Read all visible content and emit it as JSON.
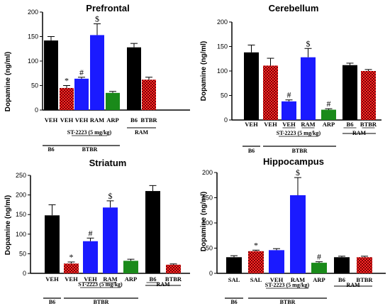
{
  "chart_data": [
    {
      "type": "bar",
      "title": "Prefrontal",
      "ylabel": "Dopamine (ng/ml)",
      "ylim": [
        0,
        200
      ],
      "yticks": [
        0,
        50,
        100,
        150,
        200
      ],
      "categories": [
        "VEH",
        "VEH",
        "VEH",
        "RAM",
        "ARP",
        "B6",
        "BTBR"
      ],
      "values": [
        142,
        45,
        64,
        153,
        35,
        128,
        62
      ],
      "errors": [
        8,
        5,
        3,
        23,
        3,
        8,
        5
      ],
      "annotations": [
        "",
        "*",
        "#",
        "$",
        "",
        "",
        ""
      ],
      "fills": [
        "black",
        "red-check",
        "blue",
        "blue",
        "green",
        "black",
        "red-check"
      ],
      "underlined_labels": [
        false,
        false,
        false,
        false,
        false,
        false,
        false
      ],
      "groups": [
        {
          "label": "ST-2223 (5 mg/kg)",
          "from": 2,
          "to": 3,
          "underline": true
        },
        {
          "label": "RAM",
          "from": 5,
          "to": 6,
          "underline": false
        },
        {
          "label": "B6",
          "from": 0,
          "to": 0,
          "underline": false
        },
        {
          "label": "BTBR",
          "from": 1,
          "to": 4,
          "underline": false
        }
      ]
    },
    {
      "type": "bar",
      "title": "Cerebellum",
      "ylabel": "Dopamine (ng/ml)",
      "ylim": [
        0,
        200
      ],
      "yticks": [
        0,
        50,
        100,
        150,
        200
      ],
      "categories": [
        "VEH",
        "VEH",
        "VEH",
        "RAM",
        "ARP",
        "B6",
        "BTBR"
      ],
      "values": [
        138,
        111,
        38,
        128,
        21,
        112,
        100
      ],
      "errors": [
        15,
        15,
        3,
        18,
        2,
        4,
        3
      ],
      "annotations": [
        "",
        "",
        "#",
        "$",
        "#",
        "",
        ""
      ],
      "fills": [
        "black",
        "red-check",
        "blue",
        "blue",
        "green",
        "black",
        "red-check"
      ],
      "underlined_labels": [
        false,
        false,
        true,
        true,
        false,
        true,
        true
      ],
      "groups": [
        {
          "label": "ST-2223 (5 mg/kg)",
          "from": 2,
          "to": 3,
          "underline": true
        },
        {
          "label": "RAM",
          "from": 5,
          "to": 6,
          "underline": false
        },
        {
          "label": "B6",
          "from": 0,
          "to": 0,
          "underline": false
        },
        {
          "label": "BTBR",
          "from": 1,
          "to": 4,
          "underline": false
        }
      ]
    },
    {
      "type": "bar",
      "title": "Striatum",
      "ylabel": "Dopamine (ng/ml)",
      "ylim": [
        0,
        250
      ],
      "yticks": [
        0,
        50,
        100,
        150,
        200,
        250
      ],
      "categories": [
        "VEH",
        "VEH",
        "VEH",
        "RAM",
        "ARP",
        "B6",
        "BTBR"
      ],
      "values": [
        148,
        25,
        82,
        168,
        32,
        210,
        22
      ],
      "errors": [
        27,
        4,
        8,
        17,
        4,
        14,
        2
      ],
      "annotations": [
        "",
        "*",
        "#",
        "$",
        "",
        "",
        ""
      ],
      "fills": [
        "black",
        "red-check",
        "blue",
        "blue",
        "green",
        "black",
        "red-check"
      ],
      "underlined_labels": [
        false,
        false,
        true,
        true,
        false,
        true,
        false
      ],
      "groups": [
        {
          "label": "ST-2223 (5 mg/kg)",
          "from": 2,
          "to": 3,
          "underline": true
        },
        {
          "label": "RAM",
          "from": 5,
          "to": 6,
          "underline": false
        },
        {
          "label": "B6",
          "from": 0,
          "to": 0,
          "underline": false
        },
        {
          "label": "BTBR",
          "from": 1,
          "to": 4,
          "underline": false
        }
      ]
    },
    {
      "type": "bar",
      "title": "Hippocampus",
      "ylabel": "Dopamine (ng/ml)",
      "ylim": [
        0,
        200
      ],
      "yticks": [
        0,
        50,
        100,
        150,
        200
      ],
      "categories": [
        "SAL",
        "SAL",
        "VEH",
        "RAM",
        "ARP",
        "B6",
        "BTBR"
      ],
      "values": [
        32,
        44,
        46,
        155,
        21,
        32,
        32
      ],
      "errors": [
        3,
        2,
        3,
        35,
        2,
        2,
        2
      ],
      "annotations": [
        "",
        "*",
        "",
        "$",
        "#",
        "",
        ""
      ],
      "fills": [
        "black",
        "red-check",
        "blue",
        "blue",
        "green",
        "black",
        "red-check"
      ],
      "underlined_labels": [
        false,
        false,
        false,
        false,
        false,
        false,
        false
      ],
      "groups": [
        {
          "label": "ST-2223 (5 mg/kg)",
          "from": 2,
          "to": 3,
          "underline": true
        },
        {
          "label": "RAM",
          "from": 5,
          "to": 6,
          "underline": false
        },
        {
          "label": "B6",
          "from": 0,
          "to": 0,
          "underline": false
        },
        {
          "label": "BTBR",
          "from": 1,
          "to": 4,
          "underline": false
        }
      ]
    }
  ],
  "colors": {
    "black": "#000000",
    "red": "#ff2a2a",
    "red_check_dark": "#7a0000",
    "blue": "#1a1aff",
    "green": "#1a8a1a"
  }
}
